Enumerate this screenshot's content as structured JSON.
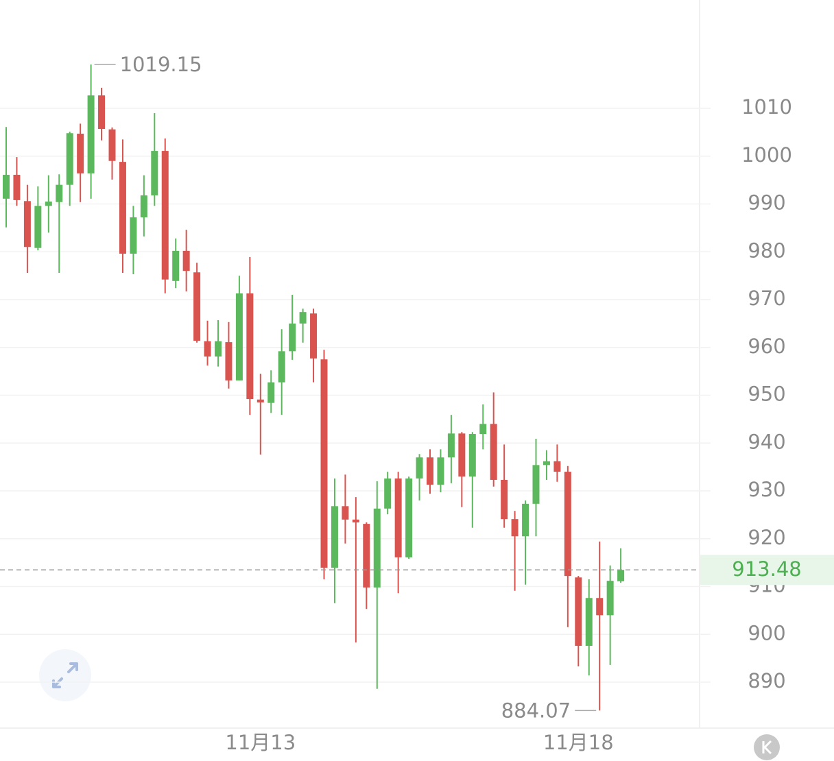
{
  "chart_data": {
    "type": "candlestick",
    "categories": [
      null,
      null,
      null,
      null,
      null,
      null,
      null,
      null,
      null,
      null,
      null,
      null,
      null,
      null,
      null,
      null,
      null,
      null,
      null,
      null,
      null,
      null,
      null,
      null,
      "11月13",
      null,
      null,
      null,
      null,
      null,
      null,
      null,
      null,
      null,
      null,
      null,
      null,
      null,
      null,
      null,
      null,
      null,
      null,
      null,
      null,
      null,
      null,
      null,
      null,
      null,
      null,
      null,
      null,
      null,
      "11月18",
      null,
      null,
      null,
      null
    ],
    "open": [
      991.1,
      996.1,
      990.6,
      980.8,
      989.6,
      990.4,
      994.0,
      1004.7,
      996.4,
      1012.7,
      1005.6,
      998.8,
      979.6,
      987.2,
      991.8,
      1001.1,
      973.9,
      980.2,
      975.7,
      961.3,
      958.1,
      961.1,
      953.1,
      971.3,
      949.1,
      948.4,
      952.7,
      959.2,
      965.0,
      967.1,
      957.5,
      913.9,
      926.8,
      924.0,
      923.1,
      909.8,
      926.3,
      932.6,
      916.1,
      932.6,
      937.0,
      931.3,
      937.0,
      942.0,
      933.0,
      941.9,
      944.0,
      932.3,
      924.1,
      920.5,
      927.3,
      935.4,
      936.2,
      934.0,
      911.9,
      897.6,
      907.6,
      904.0,
      911.1
    ],
    "high": [
      1006.1,
      999.8,
      994.0,
      993.7,
      996.0,
      996.2,
      1005.1,
      1006.8,
      1019.15,
      1014.3,
      1006.0,
      1003.5,
      989.6,
      996.0,
      1009.0,
      1003.7,
      982.8,
      984.6,
      977.7,
      965.6,
      965.7,
      965.3,
      975.0,
      978.9,
      954.5,
      955.2,
      963.8,
      971.0,
      968.1,
      968.1,
      959.5,
      932.6,
      933.4,
      928.7,
      923.4,
      932.0,
      934.0,
      934.0,
      933.0,
      937.7,
      938.7,
      938.7,
      945.9,
      942.3,
      942.3,
      948.1,
      950.6,
      939.7,
      925.8,
      928.0,
      940.9,
      938.5,
      939.7,
      935.2,
      912.2,
      911.5,
      919.4,
      914.4,
      918.0
    ],
    "low": [
      985.1,
      989.6,
      975.6,
      980.3,
      984.0,
      975.6,
      989.6,
      990.4,
      991.1,
      1003.3,
      995.1,
      975.6,
      975.3,
      983.2,
      989.6,
      971.3,
      972.4,
      971.7,
      961.0,
      956.2,
      956.0,
      951.4,
      953.1,
      945.9,
      937.6,
      946.3,
      945.9,
      957.4,
      961.0,
      952.7,
      911.5,
      906.5,
      919.0,
      898.3,
      905.3,
      888.6,
      925.1,
      908.6,
      915.8,
      928.0,
      929.4,
      929.7,
      931.6,
      926.6,
      922.3,
      938.7,
      930.9,
      922.3,
      909.1,
      910.4,
      920.5,
      932.3,
      931.9,
      901.5,
      893.3,
      891.4,
      884.07,
      893.6,
      910.8
    ],
    "close": [
      996.1,
      990.8,
      981.0,
      989.6,
      990.5,
      994.0,
      1004.8,
      996.4,
      1012.7,
      1005.7,
      999.0,
      979.6,
      987.2,
      991.8,
      1001.1,
      974.2,
      980.2,
      976.0,
      961.4,
      958.1,
      961.3,
      953.1,
      971.3,
      949.2,
      948.5,
      952.7,
      959.2,
      965.0,
      967.4,
      957.7,
      913.9,
      926.8,
      924.0,
      923.4,
      909.8,
      926.3,
      932.6,
      916.1,
      932.6,
      937.0,
      931.3,
      937.0,
      942.0,
      933.0,
      941.9,
      944.0,
      932.3,
      924.1,
      920.5,
      927.3,
      935.4,
      936.2,
      934.0,
      912.2,
      897.6,
      907.6,
      904.0,
      911.2,
      913.48
    ],
    "ylim": [
      880,
      1032
    ],
    "yticks": [
      890,
      900,
      910,
      920,
      930,
      940,
      950,
      960,
      970,
      980,
      990,
      1000,
      1010
    ],
    "grid": true,
    "up_color": "#5cb85c",
    "down_color": "#d9534f",
    "last_color": "#4caf50"
  }
}
